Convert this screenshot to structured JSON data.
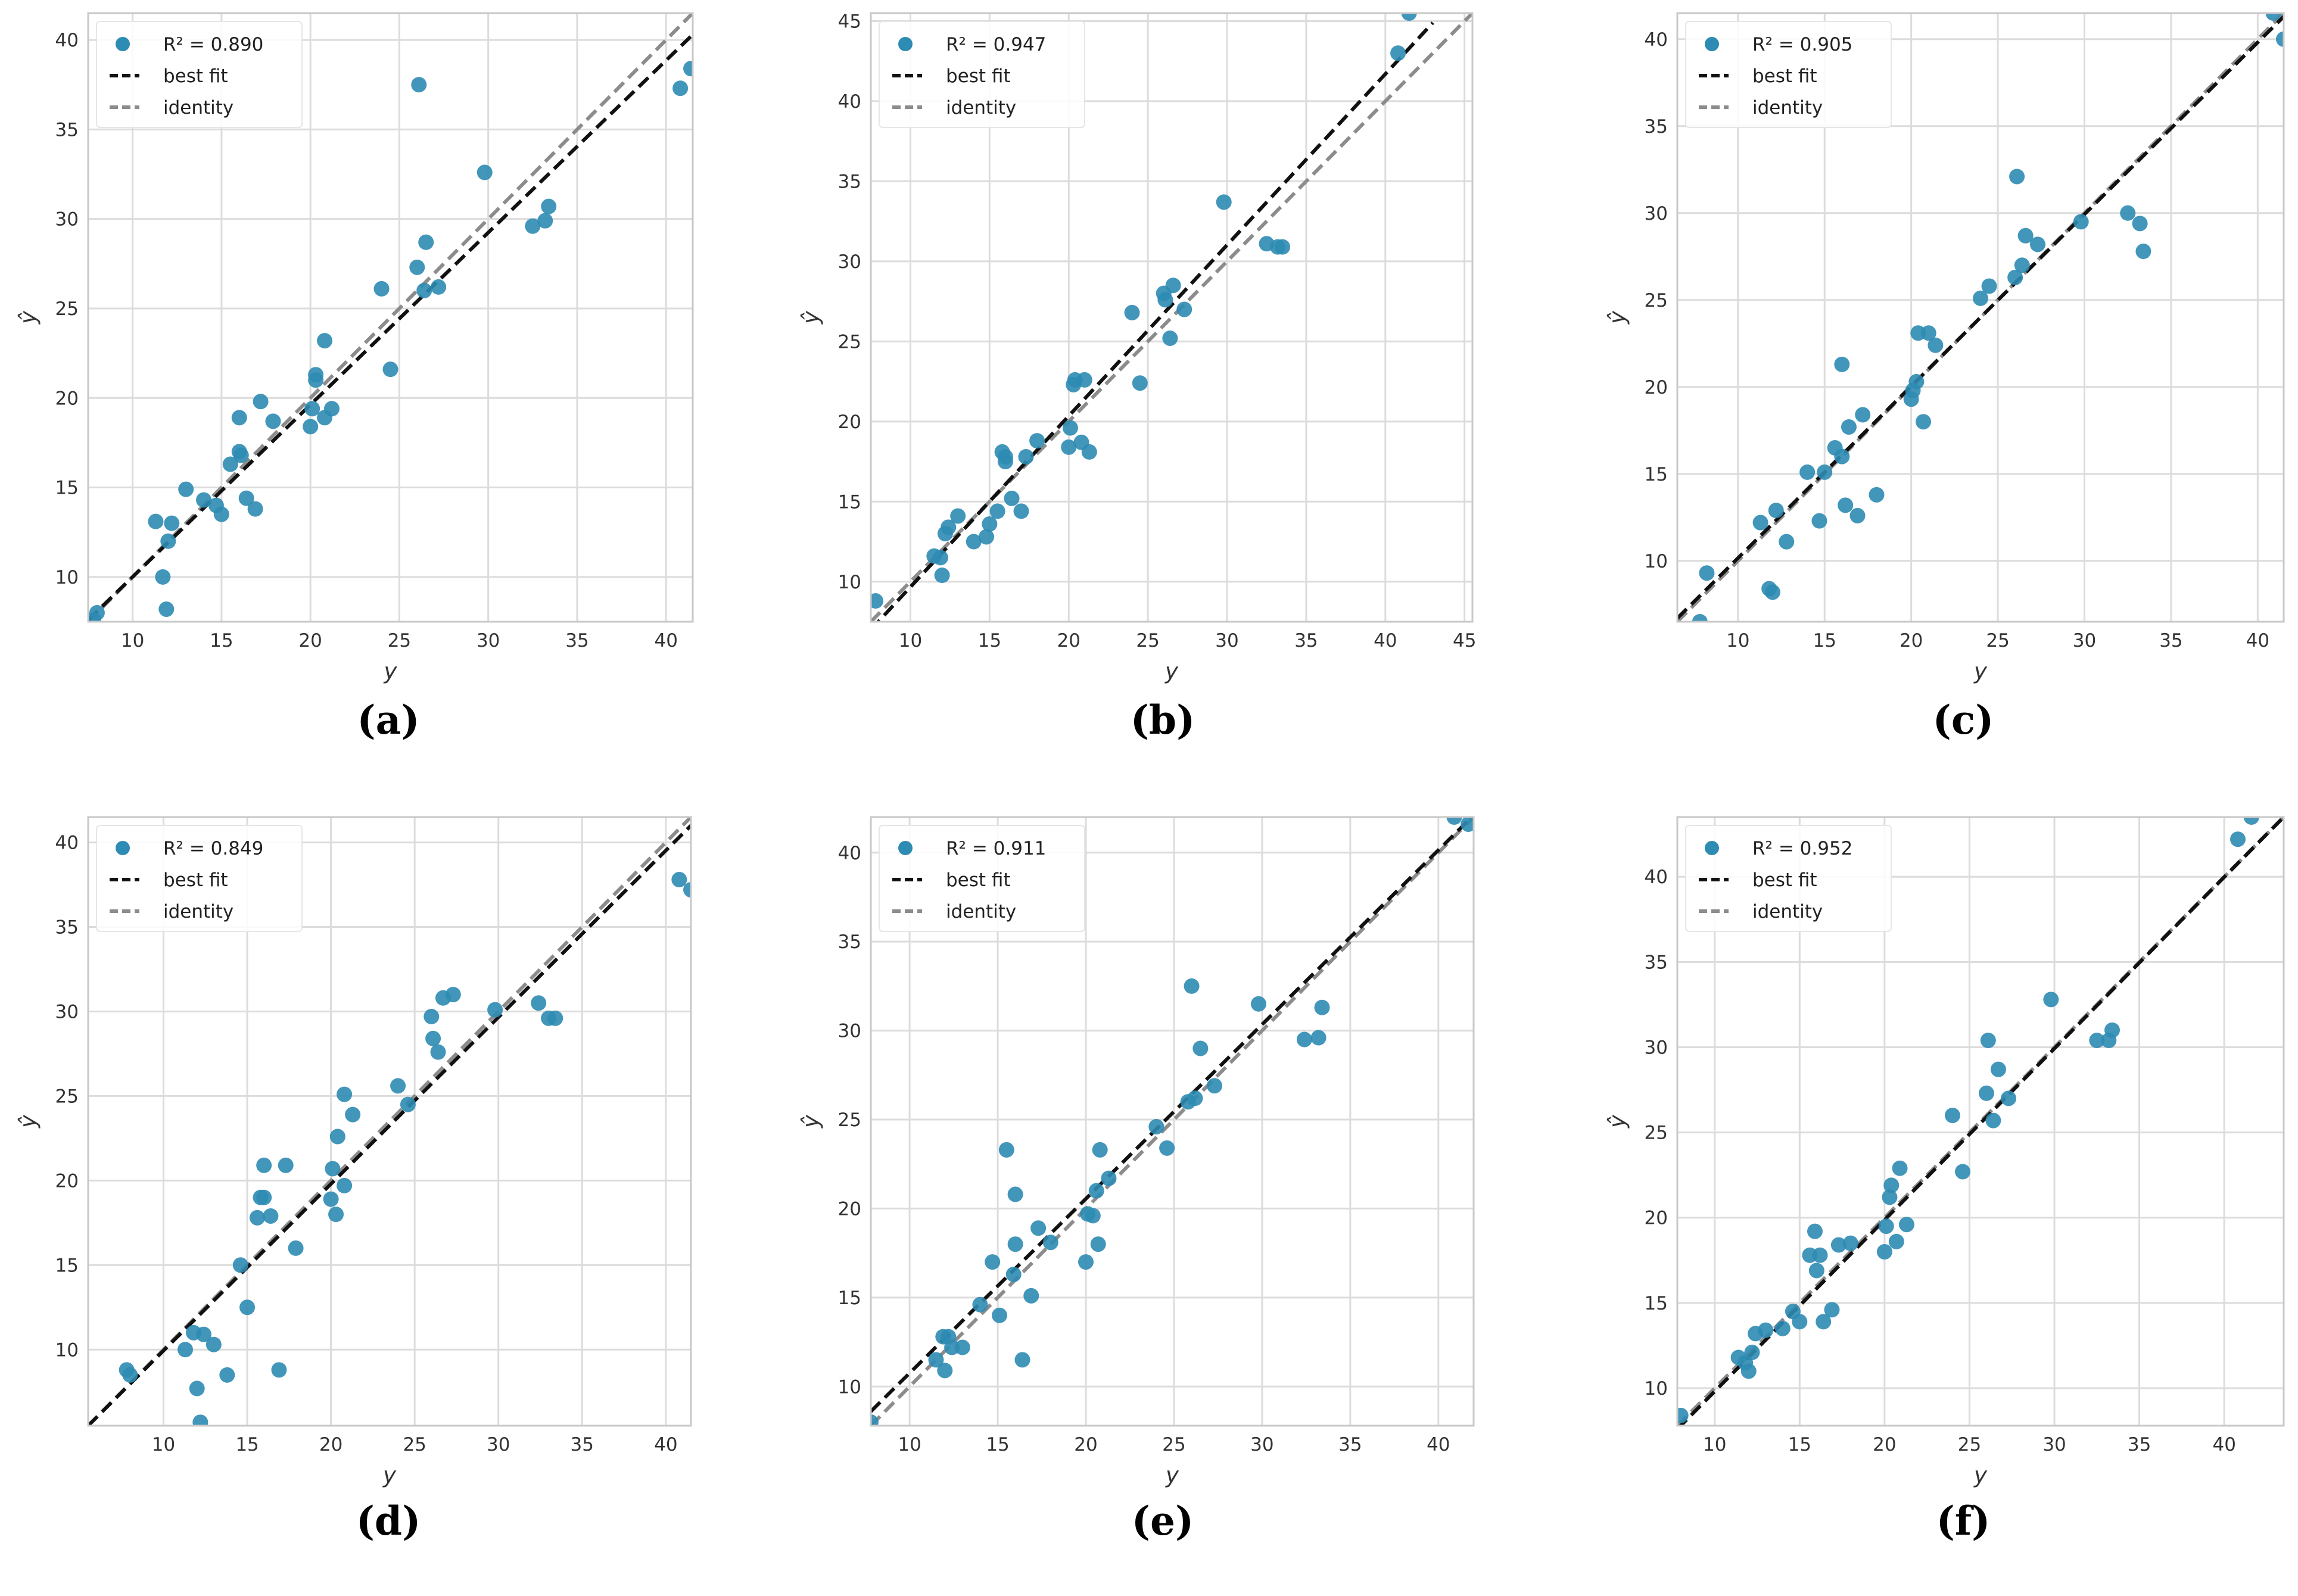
{
  "figure": {
    "panel_labels": [
      "(a)",
      "(b)",
      "(c)",
      "(d)",
      "(e)",
      "(f)"
    ],
    "colors": {
      "point": "#2e8bb3",
      "best_fit": "#111111",
      "identity": "#8c8c8c",
      "grid": "#dcdcdc",
      "frame": "#c8c8c8"
    }
  },
  "chart_data": [
    {
      "type": "scatter",
      "panel": "(a)",
      "xlabel": "y",
      "ylabel": "ŷ",
      "xlim": [
        7.5,
        41.5
      ],
      "ylim": [
        7.5,
        41.5
      ],
      "xticks": [
        10,
        15,
        20,
        25,
        30,
        35,
        40
      ],
      "yticks": [
        10,
        15,
        20,
        25,
        30,
        35,
        40
      ],
      "legend": {
        "r2_label": "R² = 0.890",
        "best_fit": "best fit",
        "identity": "identity",
        "placement": "upper-left"
      },
      "best_fit_line": [
        [
          7.5,
          7.6
        ],
        [
          41.5,
          40.3
        ]
      ],
      "identity_line": [
        [
          7.5,
          7.5
        ],
        [
          41.5,
          41.5
        ]
      ],
      "points": [
        [
          7.8,
          7.6
        ],
        [
          8.0,
          8.0
        ],
        [
          11.3,
          13.1
        ],
        [
          11.7,
          10.0
        ],
        [
          11.9,
          8.2
        ],
        [
          12.0,
          12.0
        ],
        [
          12.2,
          13.0
        ],
        [
          13.0,
          14.9
        ],
        [
          14.0,
          14.3
        ],
        [
          14.7,
          14.0
        ],
        [
          15.0,
          13.5
        ],
        [
          15.5,
          16.3
        ],
        [
          16.0,
          18.9
        ],
        [
          16.0,
          17.0
        ],
        [
          16.1,
          16.8
        ],
        [
          16.4,
          14.4
        ],
        [
          16.9,
          13.8
        ],
        [
          17.2,
          19.8
        ],
        [
          17.9,
          18.7
        ],
        [
          20.0,
          18.4
        ],
        [
          20.1,
          19.4
        ],
        [
          20.3,
          21.3
        ],
        [
          20.3,
          21.0
        ],
        [
          20.8,
          18.9
        ],
        [
          20.8,
          23.2
        ],
        [
          21.2,
          19.4
        ],
        [
          24.0,
          26.1
        ],
        [
          24.5,
          21.6
        ],
        [
          26.0,
          27.3
        ],
        [
          26.1,
          37.5
        ],
        [
          26.4,
          26.0
        ],
        [
          26.5,
          28.7
        ],
        [
          27.2,
          26.2
        ],
        [
          29.8,
          32.6
        ],
        [
          32.5,
          29.6
        ],
        [
          33.2,
          29.9
        ],
        [
          33.4,
          30.7
        ],
        [
          40.8,
          37.3
        ],
        [
          41.4,
          38.4
        ]
      ]
    },
    {
      "type": "scatter",
      "panel": "(b)",
      "xlabel": "y",
      "ylabel": "ŷ",
      "xlim": [
        7.5,
        45.5
      ],
      "ylim": [
        7.5,
        45.5
      ],
      "xticks": [
        10,
        15,
        20,
        25,
        30,
        35,
        40,
        45
      ],
      "yticks": [
        10,
        15,
        20,
        25,
        30,
        35,
        40,
        45
      ],
      "legend": {
        "r2_label": "R² = 0.947",
        "best_fit": "best fit",
        "identity": "identity",
        "placement": "upper-left"
      },
      "best_fit_line": [
        [
          7.5,
          7.0
        ],
        [
          43.0,
          44.9
        ]
      ],
      "identity_line": [
        [
          7.5,
          7.5
        ],
        [
          45.5,
          45.5
        ]
      ],
      "points": [
        [
          7.8,
          8.8
        ],
        [
          11.5,
          11.6
        ],
        [
          11.9,
          11.5
        ],
        [
          12.0,
          10.4
        ],
        [
          12.2,
          13.0
        ],
        [
          12.4,
          13.4
        ],
        [
          13.0,
          14.1
        ],
        [
          14.0,
          12.5
        ],
        [
          14.8,
          12.8
        ],
        [
          15.0,
          13.6
        ],
        [
          15.5,
          14.4
        ],
        [
          15.8,
          18.1
        ],
        [
          16.0,
          17.5
        ],
        [
          16.0,
          17.8
        ],
        [
          16.4,
          15.2
        ],
        [
          17.0,
          14.4
        ],
        [
          17.3,
          17.8
        ],
        [
          18.0,
          18.8
        ],
        [
          20.0,
          18.4
        ],
        [
          20.1,
          19.6
        ],
        [
          20.3,
          22.3
        ],
        [
          20.4,
          22.6
        ],
        [
          20.8,
          18.7
        ],
        [
          21.0,
          22.6
        ],
        [
          21.3,
          18.1
        ],
        [
          24.0,
          26.8
        ],
        [
          24.5,
          22.4
        ],
        [
          26.0,
          28.0
        ],
        [
          26.1,
          27.6
        ],
        [
          26.4,
          25.2
        ],
        [
          26.6,
          28.5
        ],
        [
          27.3,
          27.0
        ],
        [
          29.8,
          33.7
        ],
        [
          32.5,
          31.1
        ],
        [
          33.2,
          30.9
        ],
        [
          33.5,
          30.9
        ],
        [
          40.8,
          43.0
        ],
        [
          41.5,
          45.5
        ]
      ]
    },
    {
      "type": "scatter",
      "panel": "(c)",
      "xlabel": "y",
      "ylabel": "ŷ",
      "xlim": [
        6.5,
        41.5
      ],
      "ylim": [
        6.5,
        41.5
      ],
      "xticks": [
        10,
        15,
        20,
        25,
        30,
        35,
        40
      ],
      "yticks": [
        10,
        15,
        20,
        25,
        30,
        35,
        40
      ],
      "legend": {
        "r2_label": "R² = 0.905",
        "best_fit": "best fit",
        "identity": "identity",
        "placement": "upper-left"
      },
      "best_fit_line": [
        [
          6.5,
          6.7
        ],
        [
          41.5,
          41.3
        ]
      ],
      "identity_line": [
        [
          6.5,
          6.5
        ],
        [
          41.5,
          41.5
        ]
      ],
      "points": [
        [
          7.8,
          6.5
        ],
        [
          8.2,
          9.3
        ],
        [
          11.3,
          12.2
        ],
        [
          11.8,
          8.4
        ],
        [
          12.0,
          8.2
        ],
        [
          12.2,
          12.9
        ],
        [
          12.8,
          11.1
        ],
        [
          14.0,
          15.1
        ],
        [
          14.7,
          12.3
        ],
        [
          15.0,
          15.1
        ],
        [
          15.6,
          16.5
        ],
        [
          16.0,
          21.3
        ],
        [
          16.0,
          16.0
        ],
        [
          16.2,
          13.2
        ],
        [
          16.4,
          17.7
        ],
        [
          16.9,
          12.6
        ],
        [
          17.2,
          18.4
        ],
        [
          18.0,
          13.8
        ],
        [
          20.0,
          19.3
        ],
        [
          20.1,
          19.8
        ],
        [
          20.3,
          20.3
        ],
        [
          20.4,
          23.1
        ],
        [
          20.7,
          18.0
        ],
        [
          21.0,
          23.1
        ],
        [
          21.4,
          22.4
        ],
        [
          24.0,
          25.1
        ],
        [
          24.5,
          25.8
        ],
        [
          26.0,
          26.3
        ],
        [
          26.1,
          32.1
        ],
        [
          26.4,
          27.0
        ],
        [
          26.6,
          28.7
        ],
        [
          27.3,
          28.2
        ],
        [
          29.8,
          29.5
        ],
        [
          32.5,
          30.0
        ],
        [
          33.2,
          29.4
        ],
        [
          33.4,
          27.8
        ],
        [
          40.9,
          41.5
        ],
        [
          41.5,
          40.0
        ]
      ]
    },
    {
      "type": "scatter",
      "panel": "(d)",
      "xlabel": "y",
      "ylabel": "ŷ",
      "xlim": [
        5.5,
        41.5
      ],
      "ylim": [
        5.5,
        41.5
      ],
      "xticks": [
        10,
        15,
        20,
        25,
        30,
        35,
        40
      ],
      "yticks": [
        10,
        15,
        20,
        25,
        30,
        35,
        40
      ],
      "legend": {
        "r2_label": "R² = 0.849",
        "best_fit": "best fit",
        "identity": "identity",
        "placement": "upper-left"
      },
      "best_fit_line": [
        [
          5.5,
          5.5
        ],
        [
          41.5,
          41.0
        ]
      ],
      "identity_line": [
        [
          5.5,
          5.5
        ],
        [
          41.5,
          41.5
        ]
      ],
      "points": [
        [
          7.8,
          8.8
        ],
        [
          8.0,
          8.5
        ],
        [
          11.3,
          10.0
        ],
        [
          11.8,
          11.0
        ],
        [
          12.0,
          7.7
        ],
        [
          12.2,
          5.7
        ],
        [
          12.4,
          10.9
        ],
        [
          13.0,
          10.3
        ],
        [
          13.8,
          8.5
        ],
        [
          14.6,
          15.0
        ],
        [
          15.0,
          12.5
        ],
        [
          15.6,
          17.8
        ],
        [
          15.8,
          19.0
        ],
        [
          16.0,
          19.0
        ],
        [
          16.0,
          20.9
        ],
        [
          16.4,
          17.9
        ],
        [
          16.9,
          8.8
        ],
        [
          17.3,
          20.9
        ],
        [
          17.9,
          16.0
        ],
        [
          20.0,
          18.9
        ],
        [
          20.1,
          20.7
        ],
        [
          20.3,
          18.0
        ],
        [
          20.4,
          22.6
        ],
        [
          20.8,
          19.7
        ],
        [
          20.8,
          25.1
        ],
        [
          21.3,
          23.9
        ],
        [
          24.0,
          25.6
        ],
        [
          24.6,
          24.5
        ],
        [
          26.0,
          29.7
        ],
        [
          26.1,
          28.4
        ],
        [
          26.4,
          27.6
        ],
        [
          26.7,
          30.8
        ],
        [
          27.3,
          31.0
        ],
        [
          29.8,
          30.1
        ],
        [
          32.4,
          30.5
        ],
        [
          33.0,
          29.6
        ],
        [
          33.4,
          29.6
        ],
        [
          40.8,
          37.8
        ],
        [
          41.5,
          37.2
        ]
      ]
    },
    {
      "type": "scatter",
      "panel": "(e)",
      "xlabel": "y",
      "ylabel": "ŷ",
      "xlim": [
        7.8,
        42.0
      ],
      "ylim": [
        7.8,
        42.0
      ],
      "xticks": [
        10,
        15,
        20,
        25,
        30,
        35,
        40
      ],
      "yticks": [
        10,
        15,
        20,
        25,
        30,
        35,
        40
      ],
      "legend": {
        "r2_label": "R² = 0.911",
        "best_fit": "best fit",
        "identity": "identity",
        "placement": "upper-left"
      },
      "best_fit_line": [
        [
          7.8,
          8.6
        ],
        [
          42.0,
          42.1
        ]
      ],
      "identity_line": [
        [
          7.8,
          7.8
        ],
        [
          42.0,
          42.0
        ]
      ],
      "points": [
        [
          7.8,
          8.0
        ],
        [
          11.5,
          11.5
        ],
        [
          11.9,
          12.8
        ],
        [
          12.0,
          10.9
        ],
        [
          12.2,
          12.8
        ],
        [
          12.4,
          12.2
        ],
        [
          13.0,
          12.2
        ],
        [
          14.0,
          14.6
        ],
        [
          14.7,
          17.0
        ],
        [
          15.1,
          14.0
        ],
        [
          15.5,
          23.3
        ],
        [
          15.9,
          16.3
        ],
        [
          16.0,
          20.8
        ],
        [
          16.0,
          18.0
        ],
        [
          16.4,
          11.5
        ],
        [
          16.9,
          15.1
        ],
        [
          17.3,
          18.9
        ],
        [
          18.0,
          18.1
        ],
        [
          20.0,
          17.0
        ],
        [
          20.1,
          19.7
        ],
        [
          20.4,
          19.6
        ],
        [
          20.6,
          21.0
        ],
        [
          20.7,
          18.0
        ],
        [
          20.8,
          23.3
        ],
        [
          21.3,
          21.7
        ],
        [
          24.0,
          24.6
        ],
        [
          24.6,
          23.4
        ],
        [
          25.8,
          26.0
        ],
        [
          26.0,
          32.5
        ],
        [
          26.2,
          26.2
        ],
        [
          26.5,
          29.0
        ],
        [
          27.3,
          26.9
        ],
        [
          29.8,
          31.5
        ],
        [
          32.4,
          29.5
        ],
        [
          33.2,
          29.6
        ],
        [
          33.4,
          31.3
        ],
        [
          40.9,
          42.0
        ],
        [
          41.7,
          41.6
        ]
      ]
    },
    {
      "type": "scatter",
      "panel": "(f)",
      "xlabel": "y",
      "ylabel": "ŷ",
      "xlim": [
        7.8,
        43.5
      ],
      "ylim": [
        7.8,
        43.5
      ],
      "xticks": [
        10,
        15,
        20,
        25,
        30,
        35,
        40
      ],
      "yticks": [
        10,
        15,
        20,
        25,
        30,
        35,
        40
      ],
      "legend": {
        "r2_label": "R² = 0.952",
        "best_fit": "best fit",
        "identity": "identity",
        "placement": "upper-left"
      },
      "best_fit_line": [
        [
          7.8,
          7.6
        ],
        [
          43.5,
          43.5
        ]
      ],
      "identity_line": [
        [
          7.8,
          7.8
        ],
        [
          43.5,
          43.5
        ]
      ],
      "points": [
        [
          8.0,
          8.4
        ],
        [
          11.4,
          11.8
        ],
        [
          11.8,
          11.5
        ],
        [
          12.0,
          11.0
        ],
        [
          12.2,
          12.1
        ],
        [
          12.4,
          13.2
        ],
        [
          13.0,
          13.4
        ],
        [
          14.0,
          13.5
        ],
        [
          14.6,
          14.5
        ],
        [
          15.0,
          13.9
        ],
        [
          15.6,
          17.8
        ],
        [
          15.9,
          19.2
        ],
        [
          16.0,
          16.9
        ],
        [
          16.2,
          17.8
        ],
        [
          16.4,
          13.9
        ],
        [
          16.9,
          14.6
        ],
        [
          17.3,
          18.4
        ],
        [
          18.0,
          18.5
        ],
        [
          20.0,
          18.0
        ],
        [
          20.1,
          19.5
        ],
        [
          20.3,
          21.2
        ],
        [
          20.4,
          21.9
        ],
        [
          20.7,
          18.6
        ],
        [
          20.9,
          22.9
        ],
        [
          21.3,
          19.6
        ],
        [
          24.0,
          26.0
        ],
        [
          24.6,
          22.7
        ],
        [
          26.0,
          27.3
        ],
        [
          26.1,
          30.4
        ],
        [
          26.4,
          25.7
        ],
        [
          26.7,
          28.7
        ],
        [
          27.3,
          27.0
        ],
        [
          29.8,
          32.8
        ],
        [
          32.5,
          30.4
        ],
        [
          33.2,
          30.4
        ],
        [
          33.4,
          31.0
        ],
        [
          40.8,
          42.2
        ],
        [
          41.6,
          43.5
        ]
      ]
    }
  ]
}
